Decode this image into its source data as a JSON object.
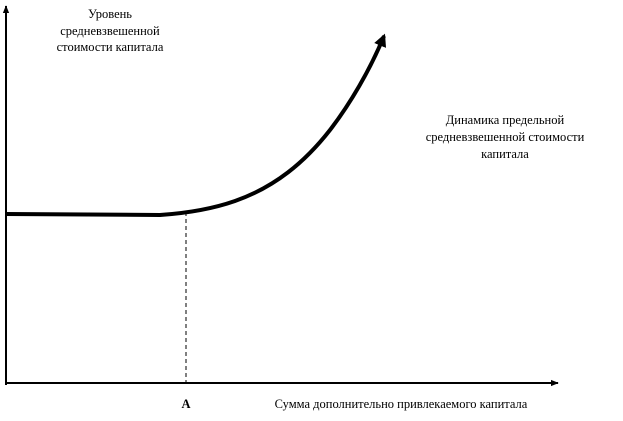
{
  "axis_label_y": [
    "Уровень",
    "средневзвешенной",
    "стоимости капитала"
  ],
  "curve_label": [
    "Динамика предельной",
    "средневзвешенной стоимости",
    "капитала"
  ],
  "point_label": "А",
  "axis_label_x": "Сумма дополнительно привлекаемого капитала"
}
